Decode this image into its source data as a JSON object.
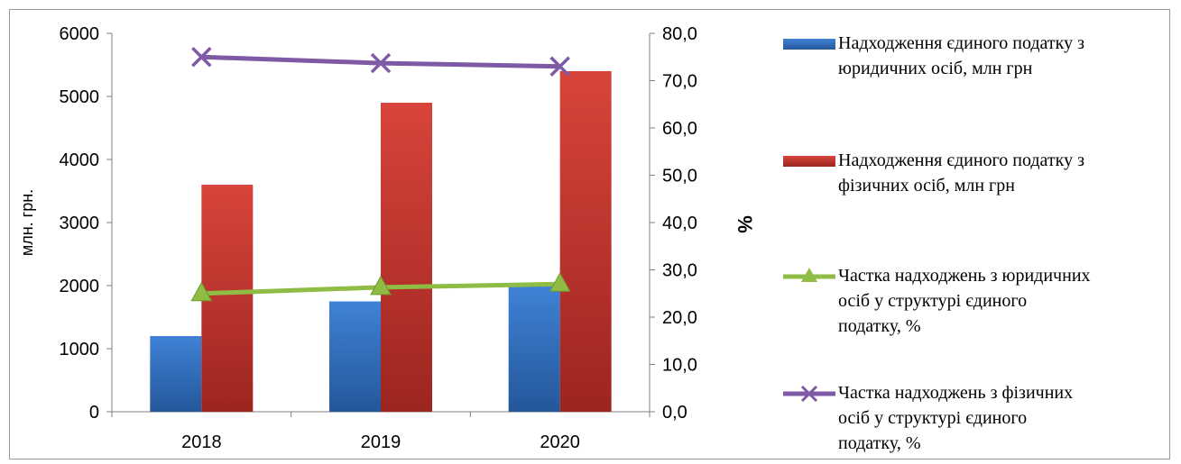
{
  "colors": {
    "series1": "#2f6fc0",
    "series2": "#c8362f",
    "series3": "#8fbc45",
    "series4": "#7e5aa6",
    "axis": "#7f7f7f"
  },
  "chart_data": {
    "type": "bar",
    "categories": [
      "2018",
      "2019",
      "2020"
    ],
    "y_left": {
      "label": "млн. грн.",
      "range": [
        0,
        6000
      ],
      "ticks": [
        "0",
        "1000",
        "2000",
        "3000",
        "4000",
        "5000",
        "6000"
      ]
    },
    "y_right": {
      "label": "%",
      "range": [
        0,
        80
      ],
      "ticks": [
        "0,0",
        "10,0",
        "20,0",
        "30,0",
        "40,0",
        "50,0",
        "60,0",
        "70,0",
        "80,0"
      ]
    },
    "series": [
      {
        "name": "Надходження єдиного податку з юридичних осіб, млн грн",
        "type": "bar",
        "axis": "left",
        "values": [
          1200,
          1750,
          2000
        ],
        "legend_lines": [
          "Надходження єдиного податку з",
          "юридичних осіб, млн грн"
        ]
      },
      {
        "name": "Надходження єдиного податку з фізичних осіб, млн грн",
        "type": "bar",
        "axis": "left",
        "values": [
          3600,
          4900,
          5400
        ],
        "legend_lines": [
          "Надходження єдиного податку з",
          "фізичних осіб, млн грн"
        ]
      },
      {
        "name": "Частка надходжень з юридичних осіб у структурі єдиного податку, %",
        "type": "line",
        "marker": "triangle",
        "axis": "right",
        "values": [
          25.0,
          26.3,
          27.0
        ],
        "legend_lines": [
          "Частка надходжень з юридичних",
          "осіб у структурі єдиного",
          "податку, %"
        ]
      },
      {
        "name": "Частка надходжень з фізичних осіб у структурі єдиного податку, %",
        "type": "line",
        "marker": "x",
        "axis": "right",
        "values": [
          75.0,
          73.7,
          73.0
        ],
        "legend_lines": [
          "Частка надходжень з фізичних",
          "осіб у структурі єдиного",
          "податку, %"
        ]
      }
    ],
    "grid": false,
    "legend_position": "right"
  }
}
